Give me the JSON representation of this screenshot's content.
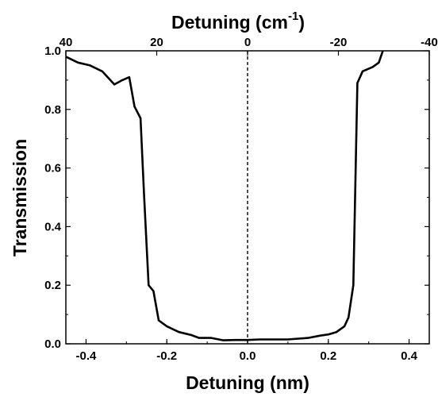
{
  "chart_data": {
    "type": "line",
    "xlabel": "Detuning (nm)",
    "ylabel": "Transmission",
    "top_axis_label": "Detuning (cm",
    "top_axis_label_superscript": "-1",
    "top_axis_label_close": ")",
    "xlim": [
      -0.45,
      0.45
    ],
    "ylim": [
      0.0,
      1.0
    ],
    "x_ticks": [
      {
        "value": -0.4,
        "label": "-0.4"
      },
      {
        "value": -0.2,
        "label": "-0.2"
      },
      {
        "value": 0.0,
        "label": "0.0"
      },
      {
        "value": 0.2,
        "label": "0.2"
      },
      {
        "value": 0.4,
        "label": "0.4"
      }
    ],
    "y_ticks": [
      {
        "value": 0.0,
        "label": "0.0"
      },
      {
        "value": 0.2,
        "label": "0.2"
      },
      {
        "value": 0.4,
        "label": "0.4"
      },
      {
        "value": 0.6,
        "label": "0.6"
      },
      {
        "value": 0.8,
        "label": "0.8"
      },
      {
        "value": 1.0,
        "label": "1.0"
      }
    ],
    "top_ticks": [
      {
        "value": -0.45,
        "label": "40"
      },
      {
        "value": -0.225,
        "label": "20"
      },
      {
        "value": 0.0,
        "label": "0"
      },
      {
        "value": 0.225,
        "label": "-20"
      },
      {
        "value": 0.45,
        "label": "-40"
      }
    ],
    "reference_line": {
      "x": 0.0,
      "style": "dashed"
    },
    "grid": false,
    "line_color": "#000000",
    "series": [
      {
        "x": [
          -0.45,
          -0.42,
          -0.39,
          -0.36,
          -0.33,
          -0.31,
          -0.293,
          -0.28,
          -0.265,
          -0.256,
          -0.245,
          -0.233,
          -0.22,
          -0.2,
          -0.17,
          -0.14,
          -0.12,
          -0.09,
          -0.06,
          -0.03,
          0.0,
          0.03,
          0.06,
          0.1,
          0.15,
          0.18,
          0.2,
          0.22,
          0.24,
          0.25,
          0.262,
          0.272,
          0.285,
          0.31,
          0.325,
          0.335
        ],
        "y": [
          0.98,
          0.96,
          0.95,
          0.93,
          0.885,
          0.9,
          0.91,
          0.81,
          0.77,
          0.5,
          0.2,
          0.18,
          0.08,
          0.06,
          0.04,
          0.03,
          0.02,
          0.02,
          0.012,
          0.013,
          0.013,
          0.015,
          0.015,
          0.015,
          0.02,
          0.028,
          0.032,
          0.04,
          0.06,
          0.09,
          0.2,
          0.89,
          0.93,
          0.945,
          0.96,
          1.0
        ]
      }
    ]
  }
}
